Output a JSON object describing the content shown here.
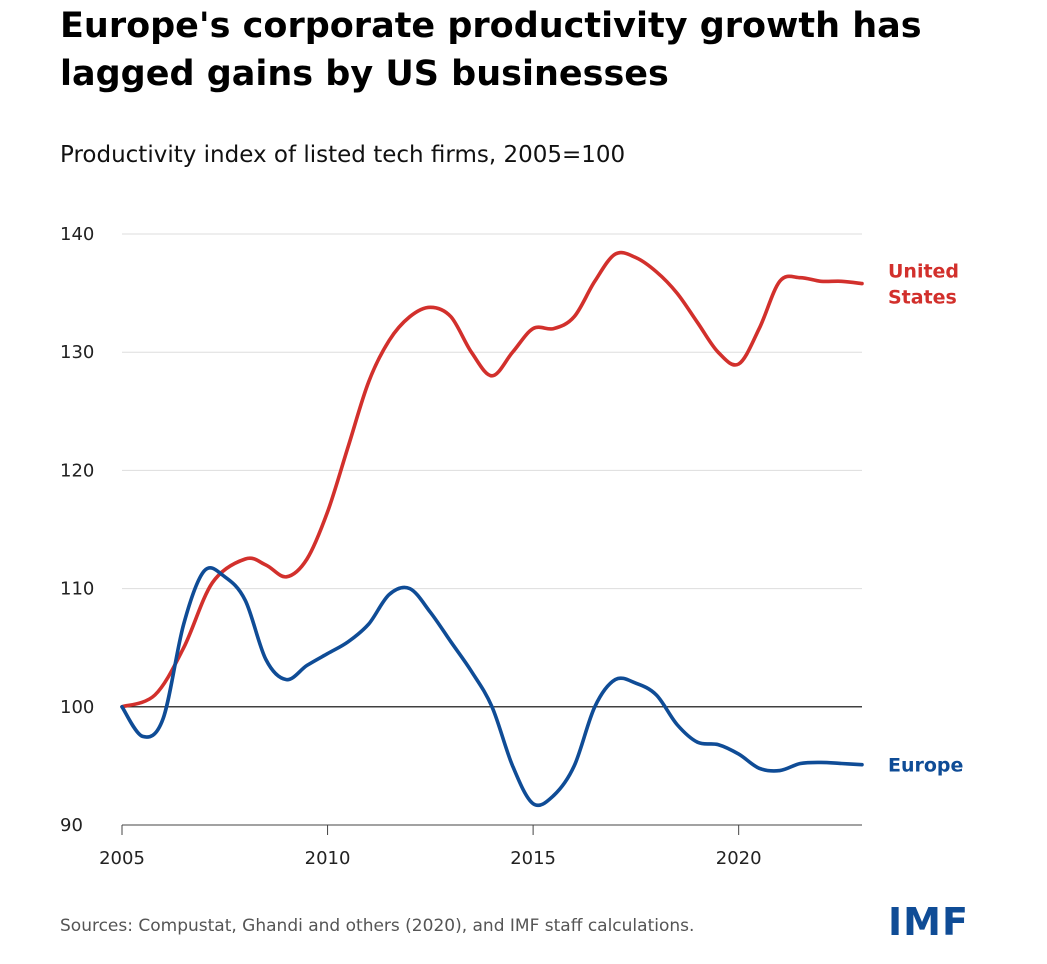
{
  "title": "Europe's corporate productivity growth has lagged gains by US businesses",
  "subtitle": "Productivity index of listed tech firms, 2005=100",
  "source": "Sources: Compustat, Ghandi and others (2020), and IMF staff calculations.",
  "logo": "IMF",
  "colors": {
    "us": "#d2302c",
    "europe": "#0f4c96",
    "grid": "#dddddd",
    "baseline": "#000000",
    "logo": "#0f4c96"
  },
  "chart_data": {
    "type": "line",
    "title": "",
    "xlabel": "",
    "ylabel": "",
    "xlim": [
      2005,
      2023
    ],
    "ylim": [
      90,
      140
    ],
    "yticks": [
      "90",
      "100",
      "110",
      "120",
      "130",
      "140"
    ],
    "xticks": [
      "2005",
      "2010",
      "2015",
      "2020"
    ],
    "grid": true,
    "baseline": 100,
    "series": [
      {
        "name": "United States",
        "label_lines": [
          "United",
          "States"
        ],
        "color": "#d2302c",
        "x": [
          2005,
          2005.8,
          2006.5,
          2007.2,
          2008,
          2008.5,
          2009,
          2009.5,
          2010,
          2010.5,
          2011,
          2011.5,
          2012,
          2012.5,
          2013,
          2013.5,
          2014,
          2014.5,
          2015,
          2015.5,
          2016,
          2016.5,
          2017,
          2017.5,
          2018,
          2018.5,
          2019,
          2019.5,
          2020,
          2020.5,
          2021,
          2021.5,
          2022,
          2022.5,
          2023
        ],
        "values": [
          100,
          101,
          105,
          110.5,
          112.5,
          112,
          111,
          112.5,
          116.5,
          122,
          127.5,
          131,
          133,
          133.8,
          133,
          130,
          128,
          130,
          132,
          132,
          133,
          136,
          138.3,
          138,
          136.8,
          135,
          132.5,
          130,
          129,
          132,
          136,
          136.3,
          136,
          136,
          135.8
        ]
      },
      {
        "name": "Europe",
        "label_lines": [
          "Europe"
        ],
        "color": "#0f4c96",
        "x": [
          2005,
          2005.5,
          2006,
          2006.5,
          2007,
          2007.5,
          2008,
          2008.5,
          2009,
          2009.5,
          2010,
          2010.5,
          2011,
          2011.5,
          2012,
          2012.5,
          2013,
          2013.5,
          2014,
          2014.5,
          2015,
          2015.5,
          2016,
          2016.5,
          2017,
          2017.5,
          2018,
          2018.5,
          2019,
          2019.5,
          2020,
          2020.5,
          2021,
          2021.5,
          2022,
          2022.5,
          2023
        ],
        "values": [
          100,
          97.5,
          99,
          107,
          111.5,
          111,
          109,
          104,
          102.3,
          103.5,
          104.5,
          105.5,
          107,
          109.5,
          110,
          108,
          105.5,
          103,
          100,
          95,
          91.8,
          92.5,
          95,
          100,
          102.3,
          102,
          101,
          98.5,
          97,
          96.8,
          96,
          94.8,
          94.6,
          95.2,
          95.3,
          95.2,
          95.1
        ]
      }
    ]
  }
}
